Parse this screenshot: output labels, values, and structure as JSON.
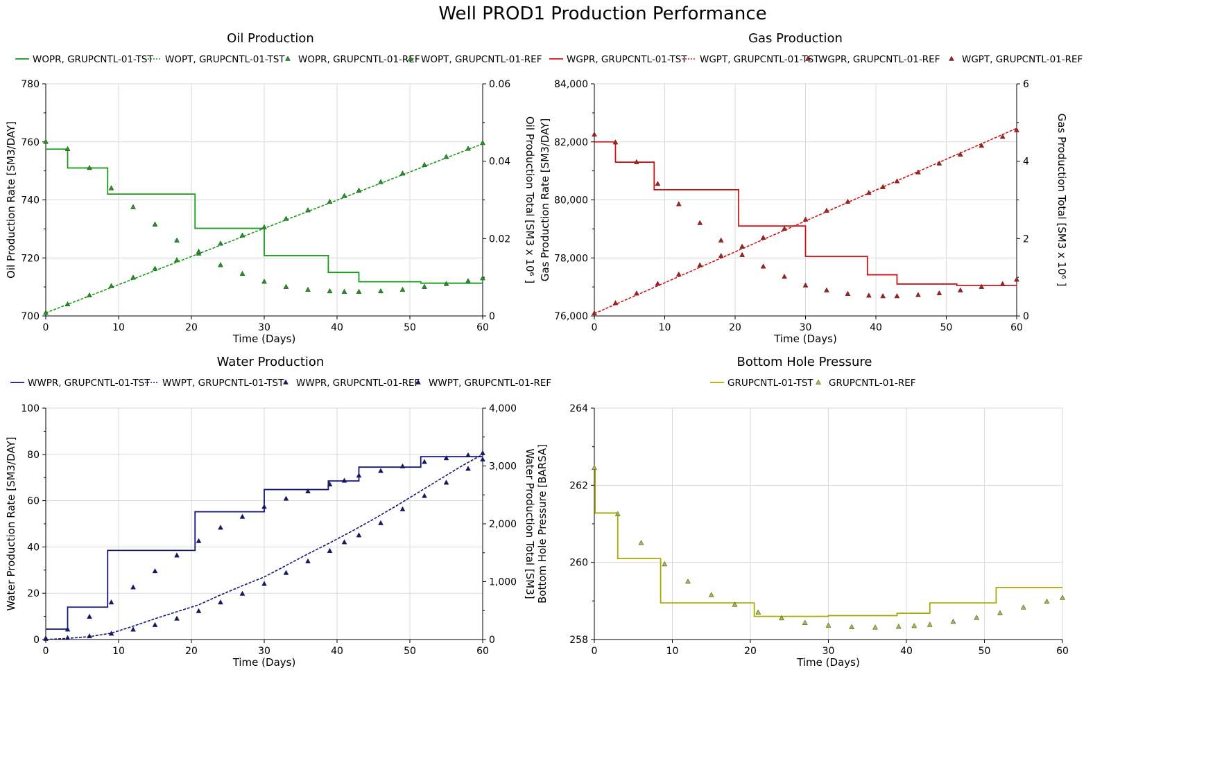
{
  "title": "Well PROD1 Production Performance",
  "chart_data": [
    {
      "id": "oil",
      "type": "line",
      "title": "Oil Production",
      "xlabel": "Time (Days)",
      "ylabel": "Oil Production Rate [SM3/DAY]",
      "y2label": "Oil Production Total [SM3 x 10⁶ ]",
      "xlim": [
        0,
        60
      ],
      "xticks": [
        0,
        10,
        20,
        30,
        40,
        50,
        60
      ],
      "ylim": [
        700,
        780
      ],
      "yticks": [
        700,
        720,
        740,
        760,
        780
      ],
      "y2lim": [
        0,
        0.06
      ],
      "y2ticks": [
        0,
        0.02,
        0.04,
        0.06
      ],
      "y2ticklabels": [
        "0",
        "0.02",
        "0.04",
        "0.06"
      ],
      "color": "#1a9a1a",
      "legend": [
        "WOPR, GRUPCNTL-01-TST",
        "WOPT, GRUPCNTL-01-TST",
        "WOPR, GRUPCNTL-01-REF",
        "WOPT, GRUPCNTL-01-REF"
      ],
      "series": [
        {
          "name": "WOPR, GRUPCNTL-01-TST",
          "kind": "step",
          "axis": "y",
          "x": [
            0,
            3,
            8.5,
            20.5,
            30,
            38.8,
            43,
            51.5,
            60
          ],
          "y": [
            757.5,
            751,
            742,
            730.2,
            720.8,
            715,
            711.8,
            711.3,
            711.3
          ]
        },
        {
          "name": "WOPT, GRUPCNTL-01-TST",
          "kind": "dashed",
          "axis": "y2",
          "x": [
            0,
            60
          ],
          "y": [
            0.0008,
            0.0445
          ]
        },
        {
          "name": "WOPR, GRUPCNTL-01-REF",
          "kind": "marker",
          "axis": "y",
          "x": [
            0,
            3,
            6,
            9,
            12,
            15,
            18,
            21,
            24,
            27,
            30,
            33,
            36,
            39,
            41,
            43,
            46,
            49,
            52,
            55,
            58,
            60
          ],
          "y": [
            760,
            757.5,
            751,
            744,
            737.5,
            731.5,
            726,
            721.5,
            717.5,
            714.5,
            711.8,
            710,
            709,
            708.5,
            708.3,
            708.3,
            708.5,
            709,
            710,
            711,
            712,
            713
          ]
        },
        {
          "name": "WOPT, GRUPCNTL-01-REF",
          "kind": "marker",
          "axis": "y2",
          "x": [
            0,
            3,
            6,
            9,
            12,
            15,
            18,
            21,
            24,
            27,
            30,
            33,
            36,
            39,
            41,
            43,
            46,
            49,
            52,
            55,
            58,
            60
          ],
          "y": [
            0.0008,
            0.003,
            0.0053,
            0.0077,
            0.0099,
            0.0122,
            0.0144,
            0.0166,
            0.0187,
            0.0208,
            0.0229,
            0.0251,
            0.0273,
            0.0295,
            0.031,
            0.0324,
            0.0346,
            0.0368,
            0.039,
            0.0411,
            0.0432,
            0.0447
          ]
        }
      ]
    },
    {
      "id": "gas",
      "type": "line",
      "title": "Gas Production",
      "xlabel": "Time (Days)",
      "ylabel": "Gas Production Rate [SM3/DAY]",
      "y2label": "Gas Production Total [SM3 x 10⁶ ]",
      "xlim": [
        0,
        60
      ],
      "xticks": [
        0,
        10,
        20,
        30,
        40,
        50,
        60
      ],
      "ylim": [
        76000,
        84000
      ],
      "yticks": [
        76000,
        78000,
        80000,
        82000,
        84000
      ],
      "yticklabels": [
        "76,000",
        "78,000",
        "80,000",
        "82,000",
        "84,000"
      ],
      "y2lim": [
        0,
        6
      ],
      "y2ticks": [
        0,
        2,
        4,
        6
      ],
      "y2ticklabels": [
        "0",
        "2",
        "4",
        "6"
      ],
      "color": "#d01414",
      "markerColor": "#b21a1a",
      "legend": [
        "WGPR, GRUPCNTL-01-TST",
        "WGPT, GRUPCNTL-01-TST",
        "WGPR, GRUPCNTL-01-REF",
        "WGPT, GRUPCNTL-01-REF"
      ],
      "series": [
        {
          "name": "WGPR, GRUPCNTL-01-TST",
          "kind": "step",
          "axis": "y",
          "x": [
            0,
            3,
            8.5,
            20.5,
            30,
            38.8,
            43,
            51.5,
            60
          ],
          "y": [
            82000,
            81300,
            80350,
            79100,
            78050,
            77420,
            77100,
            77050,
            77050
          ]
        },
        {
          "name": "WGPT, GRUPCNTL-01-TST",
          "kind": "dashed",
          "axis": "y2",
          "x": [
            0,
            60
          ],
          "y": [
            0.06,
            4.85
          ]
        },
        {
          "name": "WGPR, GRUPCNTL-01-REF",
          "kind": "marker",
          "axis": "y",
          "x": [
            0,
            3,
            6,
            9,
            12,
            15,
            18,
            21,
            24,
            27,
            30,
            33,
            36,
            39,
            41,
            43,
            46,
            49,
            52,
            55,
            58,
            60
          ],
          "y": [
            82250,
            81980,
            81300,
            80550,
            79850,
            79200,
            78600,
            78100,
            77700,
            77350,
            77050,
            76880,
            76760,
            76700,
            76680,
            76680,
            76720,
            76780,
            76880,
            77000,
            77100,
            77250
          ]
        },
        {
          "name": "WGPT, GRUPCNTL-01-REF",
          "kind": "marker",
          "axis": "y2",
          "x": [
            0,
            3,
            6,
            9,
            12,
            15,
            18,
            21,
            24,
            27,
            30,
            33,
            36,
            39,
            41,
            43,
            46,
            49,
            52,
            55,
            58,
            60
          ],
          "y": [
            0.07,
            0.33,
            0.58,
            0.83,
            1.07,
            1.31,
            1.55,
            1.79,
            2.02,
            2.25,
            2.49,
            2.72,
            2.95,
            3.18,
            3.33,
            3.48,
            3.71,
            3.94,
            4.17,
            4.4,
            4.63,
            4.8
          ]
        }
      ]
    },
    {
      "id": "water",
      "type": "line",
      "title": "Water Production",
      "xlabel": "Time (Days)",
      "ylabel": "Water Production Rate [SM3/DAY]",
      "y2label": "Water Production Total [SM3]",
      "xlim": [
        0,
        60
      ],
      "xticks": [
        0,
        10,
        20,
        30,
        40,
        50,
        60
      ],
      "ylim": [
        0,
        100
      ],
      "yticks": [
        0,
        20,
        40,
        60,
        80,
        100
      ],
      "y2lim": [
        0,
        4000
      ],
      "y2ticks": [
        0,
        1000,
        2000,
        3000,
        4000
      ],
      "y2ticklabels": [
        "0",
        "1,000",
        "2,000",
        "3,000",
        "4,000"
      ],
      "color": "#141478",
      "legend": [
        "WWPR, GRUPCNTL-01-TST",
        "WWPT, GRUPCNTL-01-TST",
        "WWPR, GRUPCNTL-01-REF",
        "WWPT, GRUPCNTL-01-REF"
      ],
      "series": [
        {
          "name": "WWPR, GRUPCNTL-01-TST",
          "kind": "step",
          "axis": "y",
          "x": [
            0,
            3,
            8.5,
            20.5,
            30,
            38.8,
            43,
            51.5,
            60
          ],
          "y": [
            4.5,
            14,
            38.5,
            55.2,
            64.8,
            68.5,
            74.5,
            79,
            79
          ]
        },
        {
          "name": "WWPT, GRUPCNTL-01-TST",
          "kind": "dashed",
          "axis": "y2",
          "x": [
            0,
            3,
            6,
            9,
            12,
            15,
            18,
            21,
            24,
            27,
            30,
            33,
            36,
            39,
            42,
            45,
            48,
            51,
            54,
            57,
            60
          ],
          "y": [
            0,
            20,
            50,
            110,
            230,
            360,
            480,
            600,
            770,
            930,
            1080,
            1280,
            1480,
            1670,
            1870,
            2080,
            2300,
            2530,
            2760,
            2990,
            3200
          ]
        },
        {
          "name": "WWPR, GRUPCNTL-01-REF",
          "kind": "marker",
          "axis": "y",
          "x": [
            0,
            3,
            6,
            9,
            12,
            15,
            18,
            21,
            24,
            27,
            30,
            33,
            36,
            39,
            41,
            43,
            46,
            49,
            52,
            55,
            58,
            60
          ],
          "y": [
            0.5,
            4.3,
            9.8,
            16,
            22.5,
            29.5,
            36.3,
            42.5,
            48.3,
            53,
            57.3,
            60.8,
            64,
            67,
            68.6,
            70.8,
            72.8,
            74.8,
            76.7,
            78.3,
            79.6,
            80.5
          ]
        },
        {
          "name": "WWPT, GRUPCNTL-01-REF",
          "kind": "marker",
          "axis": "y2",
          "x": [
            0,
            3,
            6,
            9,
            12,
            15,
            18,
            21,
            24,
            27,
            30,
            33,
            36,
            39,
            41,
            43,
            46,
            49,
            52,
            55,
            58,
            60
          ],
          "y": [
            10,
            25,
            55,
            100,
            170,
            250,
            360,
            490,
            640,
            790,
            960,
            1150,
            1350,
            1530,
            1680,
            1800,
            2010,
            2250,
            2480,
            2710,
            2950,
            3110
          ]
        }
      ]
    },
    {
      "id": "bhp",
      "type": "line",
      "title": "Bottom Hole Pressure",
      "xlabel": "Time (Days)",
      "ylabel": "Bottom Hole Pressure [BARSA]",
      "xlim": [
        0,
        60
      ],
      "xticks": [
        0,
        10,
        20,
        30,
        40,
        50,
        60
      ],
      "ylim": [
        258,
        264
      ],
      "yticks": [
        258,
        260,
        262,
        264
      ],
      "color": "#a8a800",
      "markerColor": "#a8b83a",
      "legend": [
        "GRUPCNTL-01-TST",
        "GRUPCNTL-01-REF"
      ],
      "series": [
        {
          "name": "GRUPCNTL-01-TST",
          "kind": "step",
          "axis": "y",
          "x": [
            0,
            0.1,
            3,
            8.5,
            20.5,
            30,
            38.8,
            43,
            51.5,
            60
          ],
          "y": [
            262.45,
            261.28,
            260.1,
            258.95,
            258.6,
            258.62,
            258.68,
            258.95,
            259.35,
            259.35
          ]
        },
        {
          "name": "GRUPCNTL-01-REF",
          "kind": "marker",
          "axis": "y",
          "x": [
            0,
            3,
            6,
            9,
            12,
            15,
            18,
            21,
            24,
            27,
            30,
            33,
            36,
            39,
            41,
            43,
            46,
            49,
            52,
            55,
            58,
            60
          ],
          "y": [
            262.45,
            261.25,
            260.5,
            259.95,
            259.5,
            259.15,
            258.9,
            258.7,
            258.55,
            258.43,
            258.36,
            258.32,
            258.31,
            258.33,
            258.35,
            258.38,
            258.46,
            258.56,
            258.68,
            258.83,
            258.98,
            259.08
          ]
        }
      ]
    }
  ]
}
